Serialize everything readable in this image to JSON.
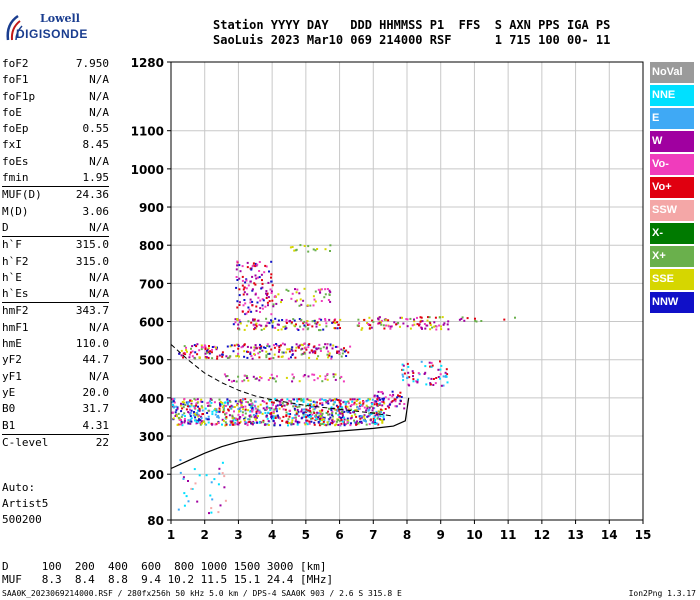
{
  "logo": {
    "line1": "Lowell",
    "line2": "DIGISONDE"
  },
  "header": {
    "line1": "Station YYYY DAY   DDD HHMMSS P1  FFS  S AXN PPS IGA PS",
    "line2": "SaoLuis 2023 Mar10 069 214000 RSF      1 715 100 00- 11"
  },
  "params": [
    {
      "name": "foF2",
      "value": "7.950"
    },
    {
      "name": "foF1",
      "value": "N/A"
    },
    {
      "name": "foF1p",
      "value": "N/A"
    },
    {
      "name": "foE",
      "value": "N/A"
    },
    {
      "name": "foEp",
      "value": "0.55"
    },
    {
      "name": "fxI",
      "value": "8.45"
    },
    {
      "name": "foEs",
      "value": "N/A"
    },
    {
      "name": "fmin",
      "value": "1.95"
    },
    {
      "name": "MUF(D)",
      "value": "24.36"
    },
    {
      "name": "M(D)",
      "value": "3.06"
    },
    {
      "name": "D",
      "value": "N/A"
    },
    {
      "name": "h`F",
      "value": "315.0"
    },
    {
      "name": "h`F2",
      "value": "315.0"
    },
    {
      "name": "h`E",
      "value": "N/A"
    },
    {
      "name": "h`Es",
      "value": "N/A"
    },
    {
      "name": "hmF2",
      "value": "343.7"
    },
    {
      "name": "hmF1",
      "value": "N/A"
    },
    {
      "name": "hmE",
      "value": "110.0"
    },
    {
      "name": "yF2",
      "value": "44.7"
    },
    {
      "name": "yF1",
      "value": "N/A"
    },
    {
      "name": "yE",
      "value": "20.0"
    },
    {
      "name": "B0",
      "value": "31.7"
    },
    {
      "name": "B1",
      "value": "4.31"
    },
    {
      "name": "C-level",
      "value": "22"
    }
  ],
  "separators_after": [
    7,
    10,
    14,
    22
  ],
  "auto": {
    "line1": "Auto:",
    "line2": "Artist5",
    "line3": "500200"
  },
  "muf_table": {
    "line1": "D     100  200  400  600  800 1000 1500 3000 [km]",
    "line2": "MUF   8.3  8.4  8.8  9.4 10.2 11.5 15.1 24.4 [MHz]"
  },
  "footer": {
    "left": "SAA0K_2023069214000.RSF / 280fx256h 50 kHz 5.0 km / DPS-4 SAA0K 903 / 2.6 S 315.8 E",
    "right": "Ion2Png 1.3.17"
  },
  "legend": [
    {
      "label": "NoVal",
      "color": "#9a9a9a"
    },
    {
      "label": "NNE",
      "color": "#00e0ff"
    },
    {
      "label": "E",
      "color": "#3fa9f5"
    },
    {
      "label": "W",
      "color": "#a000a0"
    },
    {
      "label": "Vo-",
      "color": "#f03cbc"
    },
    {
      "label": "Vo+",
      "color": "#e00010"
    },
    {
      "label": "SSW",
      "color": "#f4a7a7"
    },
    {
      "label": "X-",
      "color": "#007a00"
    },
    {
      "label": "X+",
      "color": "#6ab04c"
    },
    {
      "label": "SSE",
      "color": "#d6d600"
    },
    {
      "label": "NNW",
      "color": "#1010c8"
    }
  ],
  "chart_data": {
    "type": "scatter",
    "x_ticks": [
      1,
      2,
      3,
      4,
      5,
      6,
      7,
      8,
      9,
      10,
      11,
      12,
      13,
      14,
      15
    ],
    "y_ticks": [
      80,
      200,
      300,
      400,
      500,
      600,
      700,
      800,
      900,
      1000,
      1100,
      1280
    ],
    "xlim": [
      1,
      15
    ],
    "ylim": [
      80,
      1280
    ],
    "grid": true,
    "clusters": [
      {
        "fmin": 1.0,
        "fmax": 7.3,
        "hmin": 330,
        "hmax": 400,
        "density": 1.0,
        "colors": [
          "W",
          "Vo-",
          "NNW",
          "E",
          "Vo+",
          "NNE",
          "SSE",
          "X+"
        ]
      },
      {
        "fmin": 1.2,
        "fmax": 6.3,
        "hmin": 505,
        "hmax": 545,
        "density": 0.55,
        "colors": [
          "W",
          "Vo-",
          "SSE",
          "X+",
          "NNW",
          "Vo+"
        ]
      },
      {
        "fmin": 2.8,
        "fmax": 6.0,
        "hmin": 580,
        "hmax": 610,
        "density": 0.6,
        "colors": [
          "SSE",
          "X+",
          "W",
          "Vo-",
          "Vo+",
          "NNW"
        ]
      },
      {
        "fmin": 6.5,
        "fmax": 9.2,
        "hmin": 580,
        "hmax": 615,
        "density": 0.5,
        "colors": [
          "SSE",
          "X+",
          "Vo+",
          "Vo-",
          "W"
        ]
      },
      {
        "fmin": 2.9,
        "fmax": 4.0,
        "hmin": 620,
        "hmax": 760,
        "density": 0.35,
        "colors": [
          "W",
          "Vo-",
          "Vo+",
          "NNW"
        ]
      },
      {
        "fmin": 4.0,
        "fmax": 5.8,
        "hmin": 640,
        "hmax": 690,
        "density": 0.25,
        "colors": [
          "X+",
          "SSE",
          "W",
          "Vo-"
        ]
      },
      {
        "fmin": 4.5,
        "fmax": 5.7,
        "hmin": 785,
        "hmax": 805,
        "density": 0.3,
        "colors": [
          "SSE",
          "X+"
        ]
      },
      {
        "fmin": 2.5,
        "fmax": 6.2,
        "hmin": 445,
        "hmax": 465,
        "density": 0.35,
        "colors": [
          "SSE",
          "X+",
          "Vo-",
          "W"
        ]
      },
      {
        "fmin": 7.0,
        "fmax": 7.9,
        "hmin": 370,
        "hmax": 420,
        "density": 0.55,
        "colors": [
          "Vo+",
          "Vo-",
          "W",
          "NNW"
        ]
      },
      {
        "fmin": 7.8,
        "fmax": 9.2,
        "hmin": 430,
        "hmax": 500,
        "density": 0.3,
        "colors": [
          "NNE",
          "E",
          "Vo-",
          "W",
          "Vo+"
        ]
      },
      {
        "fmin": 9.5,
        "fmax": 11.2,
        "hmin": 595,
        "hmax": 615,
        "density": 0.15,
        "colors": [
          "Vo+",
          "W",
          "X+"
        ]
      },
      {
        "fmin": 1.2,
        "fmax": 2.6,
        "hmin": 100,
        "hmax": 240,
        "density": 0.08,
        "colors": [
          "W",
          "NNE",
          "E",
          "SSW"
        ]
      }
    ],
    "profile": [
      [
        1.0,
        215
      ],
      [
        1.5,
        235
      ],
      [
        2.0,
        255
      ],
      [
        2.5,
        272
      ],
      [
        3.0,
        285
      ],
      [
        3.5,
        293
      ],
      [
        4.0,
        298
      ],
      [
        5.0,
        305
      ],
      [
        6.0,
        313
      ],
      [
        7.0,
        320
      ],
      [
        7.6,
        326
      ],
      [
        7.95,
        340
      ],
      [
        8.0,
        370
      ],
      [
        8.05,
        400
      ]
    ],
    "virtual_trace": [
      [
        1.0,
        540
      ],
      [
        1.5,
        500
      ],
      [
        2.0,
        465
      ],
      [
        2.5,
        440
      ],
      [
        3.0,
        420
      ],
      [
        3.5,
        405
      ],
      [
        4.0,
        395
      ],
      [
        5.0,
        380
      ],
      [
        6.0,
        370
      ],
      [
        7.0,
        360
      ],
      [
        7.6,
        352
      ]
    ]
  }
}
